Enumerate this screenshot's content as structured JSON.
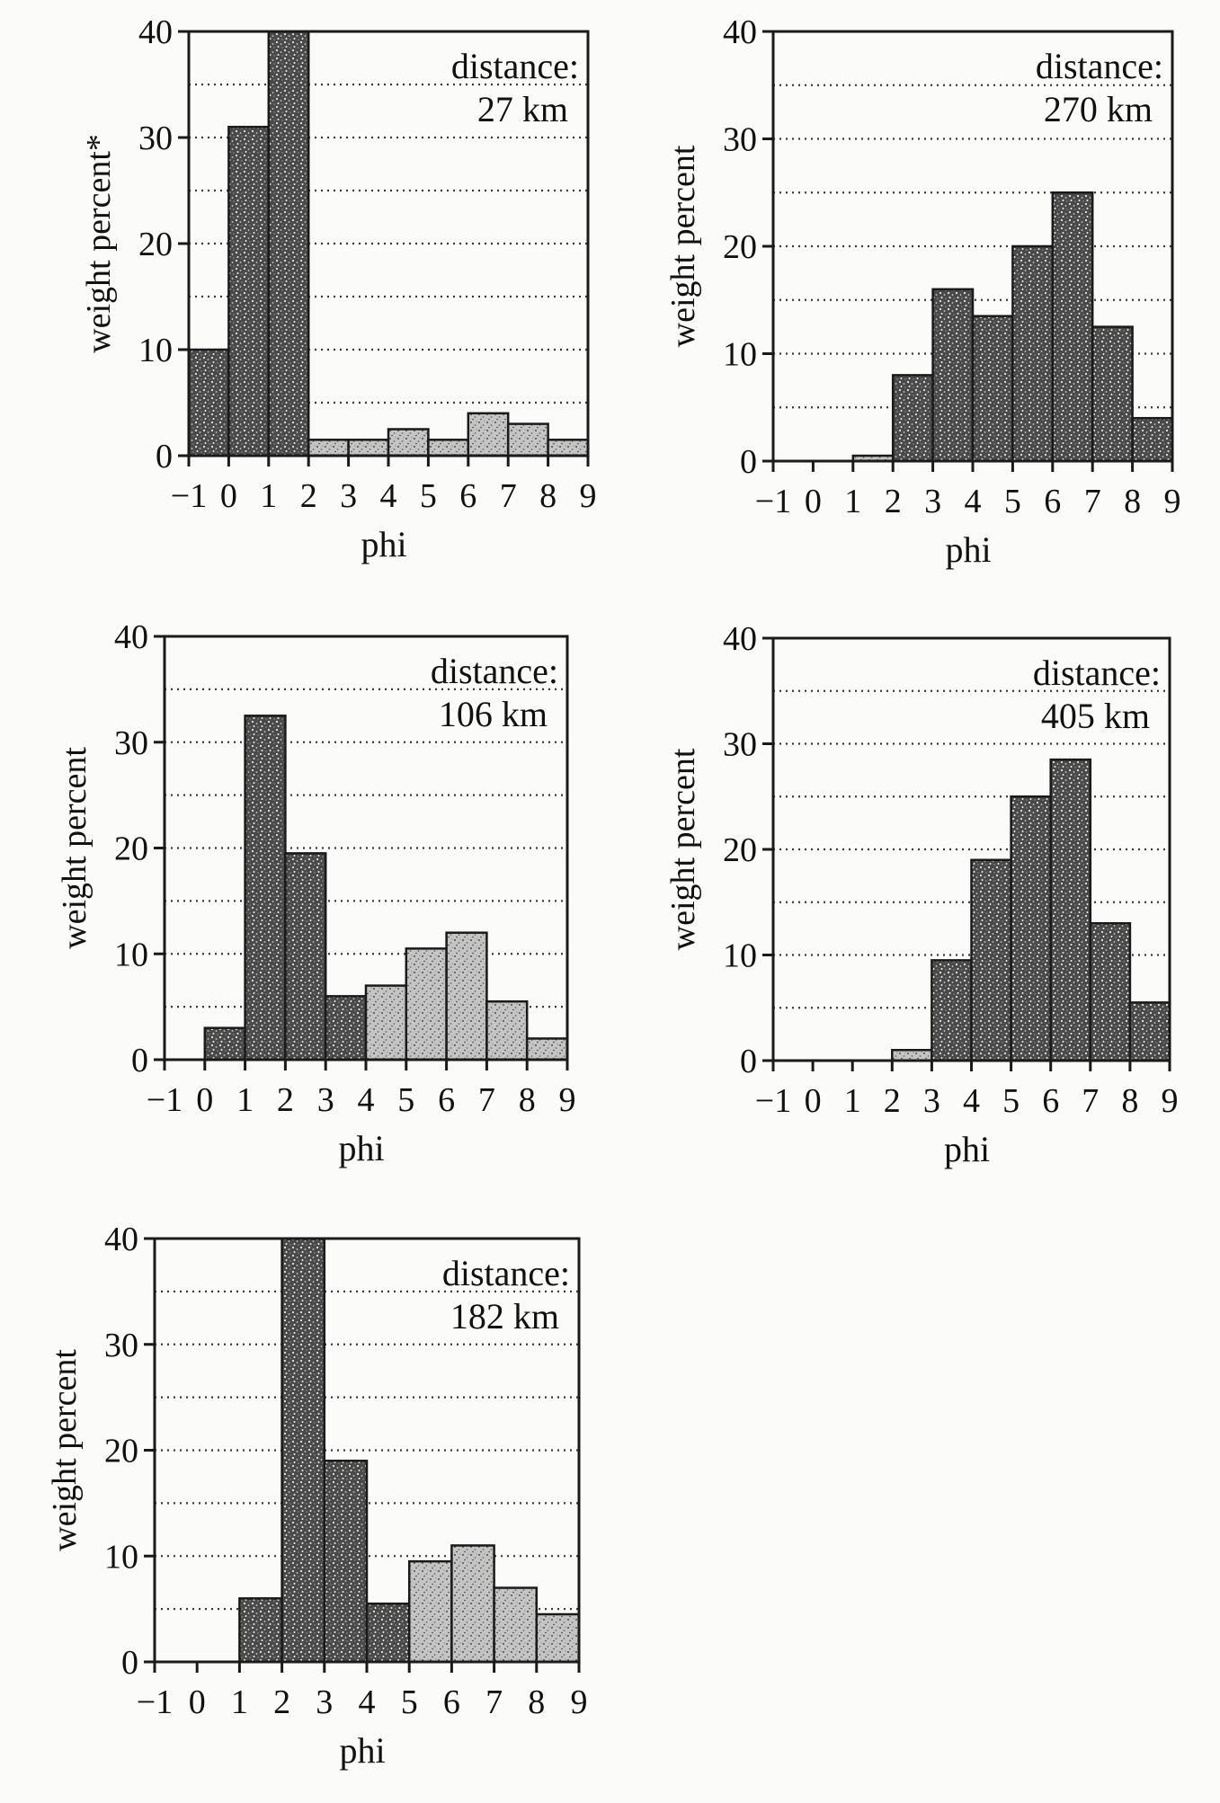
{
  "chart_data": [
    {
      "type": "bar",
      "panel": "27 km",
      "note_label": "distance:",
      "distance_label": "27 km",
      "ylabel": "weight percent*",
      "xlabel": "phi",
      "ylim": [
        0,
        40
      ],
      "yticks": [
        0,
        10,
        20,
        30,
        40
      ],
      "xlim": [
        -1,
        9
      ],
      "xticks": [
        -1,
        0,
        1,
        2,
        3,
        4,
        5,
        6,
        7,
        8,
        9
      ],
      "grid": true,
      "bins": [
        {
          "from": -1,
          "to": 0,
          "value": 10,
          "shade": "dark"
        },
        {
          "from": 0,
          "to": 1,
          "value": 31,
          "shade": "dark"
        },
        {
          "from": 1,
          "to": 2,
          "value": 40,
          "shade": "dark"
        },
        {
          "from": 2,
          "to": 3,
          "value": 1.5,
          "shade": "light"
        },
        {
          "from": 3,
          "to": 4,
          "value": 1.5,
          "shade": "light"
        },
        {
          "from": 4,
          "to": 5,
          "value": 2.5,
          "shade": "light"
        },
        {
          "from": 5,
          "to": 6,
          "value": 1.5,
          "shade": "light"
        },
        {
          "from": 6,
          "to": 7,
          "value": 4,
          "shade": "light"
        },
        {
          "from": 7,
          "to": 8,
          "value": 3,
          "shade": "light"
        },
        {
          "from": 8,
          "to": 9,
          "value": 1.5,
          "shade": "light"
        }
      ]
    },
    {
      "type": "bar",
      "panel": "270 km",
      "note_label": "distance:",
      "distance_label": "270 km",
      "ylabel": "weight percent",
      "xlabel": "phi",
      "ylim": [
        0,
        40
      ],
      "yticks": [
        0,
        10,
        20,
        30,
        40
      ],
      "xlim": [
        -1,
        9
      ],
      "xticks": [
        -1,
        0,
        1,
        2,
        3,
        4,
        5,
        6,
        7,
        8,
        9
      ],
      "grid": true,
      "bins": [
        {
          "from": 1,
          "to": 2,
          "value": 0.5,
          "shade": "light"
        },
        {
          "from": 2,
          "to": 3,
          "value": 8,
          "shade": "dark"
        },
        {
          "from": 3,
          "to": 4,
          "value": 16,
          "shade": "dark"
        },
        {
          "from": 4,
          "to": 5,
          "value": 13.5,
          "shade": "dark"
        },
        {
          "from": 5,
          "to": 6,
          "value": 20,
          "shade": "dark"
        },
        {
          "from": 6,
          "to": 7,
          "value": 25,
          "shade": "dark"
        },
        {
          "from": 7,
          "to": 8,
          "value": 12.5,
          "shade": "dark"
        },
        {
          "from": 8,
          "to": 9,
          "value": 4,
          "shade": "dark"
        }
      ]
    },
    {
      "type": "bar",
      "panel": "106 km",
      "note_label": "distance:",
      "distance_label": "106 km",
      "ylabel": "weight percent",
      "xlabel": "phi",
      "ylim": [
        0,
        40
      ],
      "yticks": [
        0,
        10,
        20,
        30,
        40
      ],
      "xlim": [
        -1,
        9
      ],
      "xticks": [
        -1,
        0,
        1,
        2,
        3,
        4,
        5,
        6,
        7,
        8,
        9
      ],
      "grid": true,
      "bins": [
        {
          "from": 0,
          "to": 1,
          "value": 3,
          "shade": "dark"
        },
        {
          "from": 1,
          "to": 2,
          "value": 32.5,
          "shade": "dark"
        },
        {
          "from": 2,
          "to": 3,
          "value": 19.5,
          "shade": "dark"
        },
        {
          "from": 3,
          "to": 4,
          "value": 6,
          "shade": "dark"
        },
        {
          "from": 4,
          "to": 5,
          "value": 7,
          "shade": "light"
        },
        {
          "from": 5,
          "to": 6,
          "value": 10.5,
          "shade": "light"
        },
        {
          "from": 6,
          "to": 7,
          "value": 12,
          "shade": "light"
        },
        {
          "from": 7,
          "to": 8,
          "value": 5.5,
          "shade": "light"
        },
        {
          "from": 8,
          "to": 9,
          "value": 2,
          "shade": "light"
        }
      ]
    },
    {
      "type": "bar",
      "panel": "405 km",
      "note_label": "distance:",
      "distance_label": "405 km",
      "ylabel": "weight percent",
      "xlabel": "phi",
      "ylim": [
        0,
        40
      ],
      "yticks": [
        0,
        10,
        20,
        30,
        40
      ],
      "xlim": [
        -1,
        9
      ],
      "xticks": [
        -1,
        0,
        1,
        2,
        3,
        4,
        5,
        6,
        7,
        8,
        9
      ],
      "grid": true,
      "bins": [
        {
          "from": 2,
          "to": 3,
          "value": 1,
          "shade": "light"
        },
        {
          "from": 3,
          "to": 4,
          "value": 9.5,
          "shade": "dark"
        },
        {
          "from": 4,
          "to": 5,
          "value": 19,
          "shade": "dark"
        },
        {
          "from": 5,
          "to": 6,
          "value": 25,
          "shade": "dark"
        },
        {
          "from": 6,
          "to": 7,
          "value": 28.5,
          "shade": "dark"
        },
        {
          "from": 7,
          "to": 8,
          "value": 13,
          "shade": "dark"
        },
        {
          "from": 8,
          "to": 9,
          "value": 5.5,
          "shade": "dark"
        }
      ]
    },
    {
      "type": "bar",
      "panel": "182 km",
      "note_label": "distance:",
      "distance_label": "182 km",
      "ylabel": "weight percent",
      "xlabel": "phi",
      "ylim": [
        0,
        40
      ],
      "yticks": [
        0,
        10,
        20,
        30,
        40
      ],
      "xlim": [
        -1,
        9
      ],
      "xticks": [
        -1,
        0,
        1,
        2,
        3,
        4,
        5,
        6,
        7,
        8,
        9
      ],
      "grid": true,
      "bins": [
        {
          "from": 1,
          "to": 2,
          "value": 6,
          "shade": "dark"
        },
        {
          "from": 2,
          "to": 3,
          "value": 40,
          "shade": "dark"
        },
        {
          "from": 3,
          "to": 4,
          "value": 19,
          "shade": "dark"
        },
        {
          "from": 4,
          "to": 5,
          "value": 5.5,
          "shade": "dark"
        },
        {
          "from": 5,
          "to": 6,
          "value": 9.5,
          "shade": "light"
        },
        {
          "from": 6,
          "to": 7,
          "value": 11,
          "shade": "light"
        },
        {
          "from": 7,
          "to": 8,
          "value": 7,
          "shade": "light"
        },
        {
          "from": 8,
          "to": 9,
          "value": 4.5,
          "shade": "light"
        }
      ]
    }
  ],
  "colors": {
    "axis": "#1a1a1a",
    "grid": "#3a3a3a",
    "dark_fill": "#4a4a4a",
    "light_fill": "#bdbdbd",
    "background": "#fbfbfa"
  }
}
